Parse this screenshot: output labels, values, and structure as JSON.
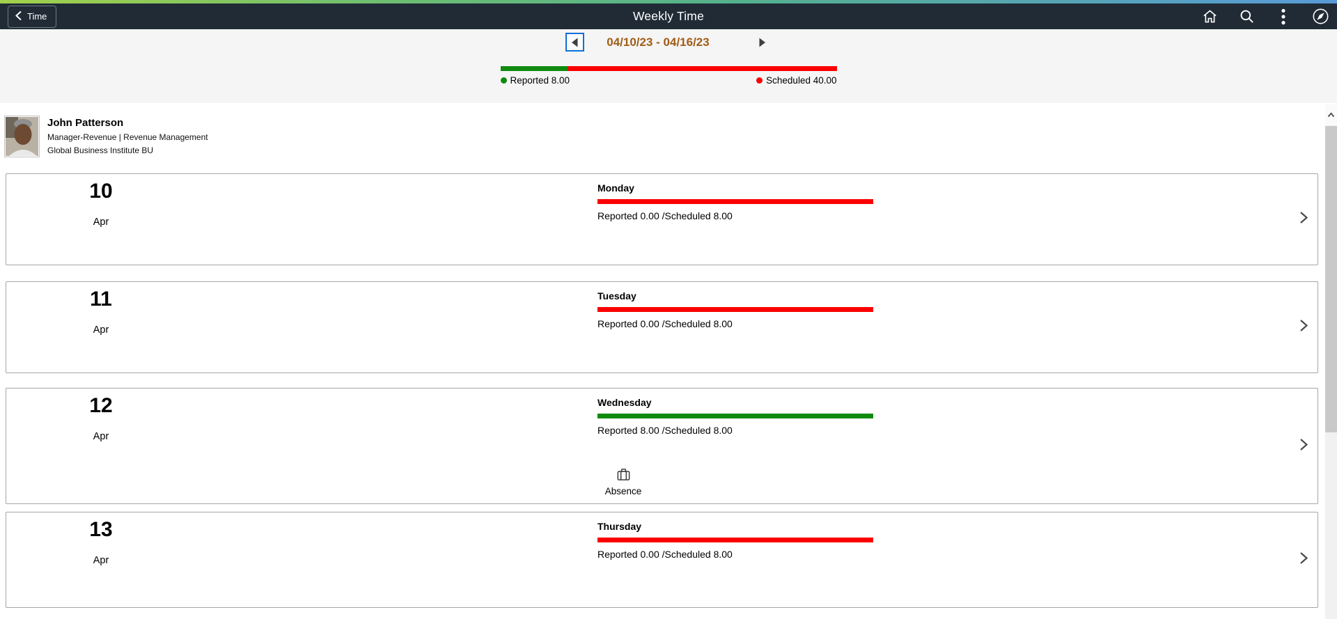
{
  "header": {
    "back_label": "Time",
    "title": "Weekly Time"
  },
  "week_nav": {
    "range": "04/10/23 - 04/16/23"
  },
  "summary": {
    "reported_label": "Reported 8.00",
    "scheduled_label": "Scheduled 40.00",
    "reported_hours": 8.0,
    "scheduled_hours": 40.0,
    "reported_pct": 20
  },
  "employee": {
    "name": "John Patterson",
    "title": "Manager-Revenue | Revenue Management",
    "business_unit": "Global Business Institute BU"
  },
  "days": [
    {
      "date": "10",
      "month": "Apr",
      "name": "Monday",
      "status": "Reported 0.00 /Scheduled 8.00",
      "bar": "red"
    },
    {
      "date": "11",
      "month": "Apr",
      "name": "Tuesday",
      "status": "Reported 0.00 /Scheduled 8.00",
      "bar": "red"
    },
    {
      "date": "12",
      "month": "Apr",
      "name": "Wednesday",
      "status": "Reported 8.00 /Scheduled 8.00",
      "bar": "green",
      "absence": "Absence"
    },
    {
      "date": "13",
      "month": "Apr",
      "name": "Thursday",
      "status": "Reported 0.00 /Scheduled 8.00",
      "bar": "red"
    }
  ],
  "colors": {
    "green": "#0f8a0f",
    "red": "#fb0000",
    "focus_blue": "#0f6fd6",
    "week_label_brown": "#a05c17",
    "header_bg": "#202b36"
  }
}
